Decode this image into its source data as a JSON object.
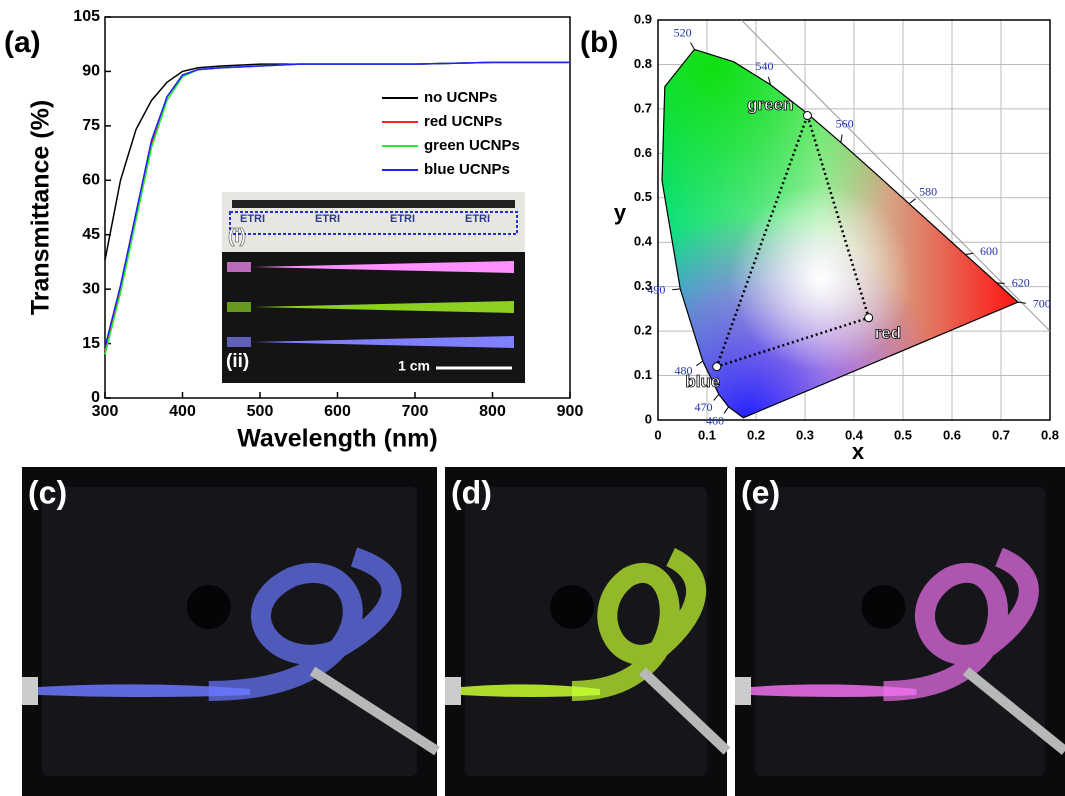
{
  "chart_data": [
    {
      "type": "line",
      "panel_label": "(a)",
      "x_label": "Wavelength  (nm)",
      "y_label": "Transmittance  (%)",
      "x": [
        300,
        320,
        340,
        360,
        380,
        400,
        420,
        450,
        500,
        550,
        600,
        700,
        800,
        900
      ],
      "series": [
        {
          "name": "no UCNPs",
          "color": "#000000",
          "values": [
            38,
            60,
            74,
            82,
            87,
            90,
            91,
            91.5,
            92,
            92,
            92,
            92,
            92.5,
            92.5
          ]
        },
        {
          "name": "red UCNPs",
          "color": "#ff2020",
          "values": [
            13,
            30,
            50,
            70,
            83,
            89,
            90.5,
            91,
            91.5,
            92,
            92,
            92,
            92.5,
            92.5
          ]
        },
        {
          "name": "green UCNPs",
          "color": "#22ee22",
          "values": [
            12,
            29,
            49,
            69,
            82,
            88.5,
            90.5,
            91,
            91.5,
            92,
            92,
            92,
            92.5,
            92.5
          ]
        },
        {
          "name": "blue UCNPs",
          "color": "#2020ff",
          "values": [
            14,
            31,
            51,
            71,
            83,
            89,
            90.5,
            91,
            91.5,
            92,
            92,
            92,
            92.5,
            92.5
          ]
        }
      ],
      "xlim": [
        300,
        900
      ],
      "xticks": [
        300,
        400,
        500,
        600,
        700,
        800,
        900
      ],
      "ylim": [
        0,
        105
      ],
      "yticks": [
        0,
        15,
        30,
        45,
        60,
        75,
        90,
        105
      ],
      "grid": false,
      "legend": "upper right",
      "inset": {
        "labels": [
          "(i)",
          "(ii)"
        ],
        "logo": "ETRI",
        "scale_bar": "1 cm"
      }
    },
    {
      "type": "cie",
      "panel_label": "(b)",
      "x_label": "x",
      "y_label": "y",
      "xlim": [
        0,
        0.8
      ],
      "xticks": [
        0,
        0.1,
        0.2,
        0.3,
        0.4,
        0.5,
        0.6,
        0.7,
        0.8
      ],
      "ylim": [
        0,
        0.9
      ],
      "yticks": [
        0,
        0.1,
        0.2,
        0.3,
        0.4,
        0.5,
        0.6,
        0.7,
        0.8,
        0.9
      ],
      "grid": true,
      "locus": {
        "wavelengths": [
          null,
          460,
          470,
          480,
          490,
          null,
          null,
          520,
          null,
          540,
          null,
          560,
          null,
          580,
          null,
          600,
          null,
          620,
          700
        ],
        "x": [
          0.1741,
          0.144,
          0.1241,
          0.0913,
          0.0454,
          0.0082,
          0.0139,
          0.0743,
          0.1547,
          0.2296,
          0.3016,
          0.3731,
          0.4441,
          0.5125,
          0.5752,
          0.627,
          0.6658,
          0.6915,
          0.7347
        ],
        "y": [
          0.005,
          0.0297,
          0.0578,
          0.1327,
          0.295,
          0.5384,
          0.7502,
          0.8338,
          0.8059,
          0.7543,
          0.6923,
          0.6245,
          0.5547,
          0.4866,
          0.4242,
          0.3725,
          0.334,
          0.3083,
          0.2653
        ]
      },
      "points": {
        "labels": [
          "green",
          "red",
          "blue"
        ],
        "x": [
          0.305,
          0.43,
          0.12
        ],
        "y": [
          0.685,
          0.23,
          0.12
        ]
      }
    }
  ],
  "photos": [
    {
      "label": "(c)",
      "color": "#6a78ff"
    },
    {
      "label": "(d)",
      "color": "#c8ff30"
    },
    {
      "label": "(e)",
      "color": "#f070f0"
    }
  ]
}
